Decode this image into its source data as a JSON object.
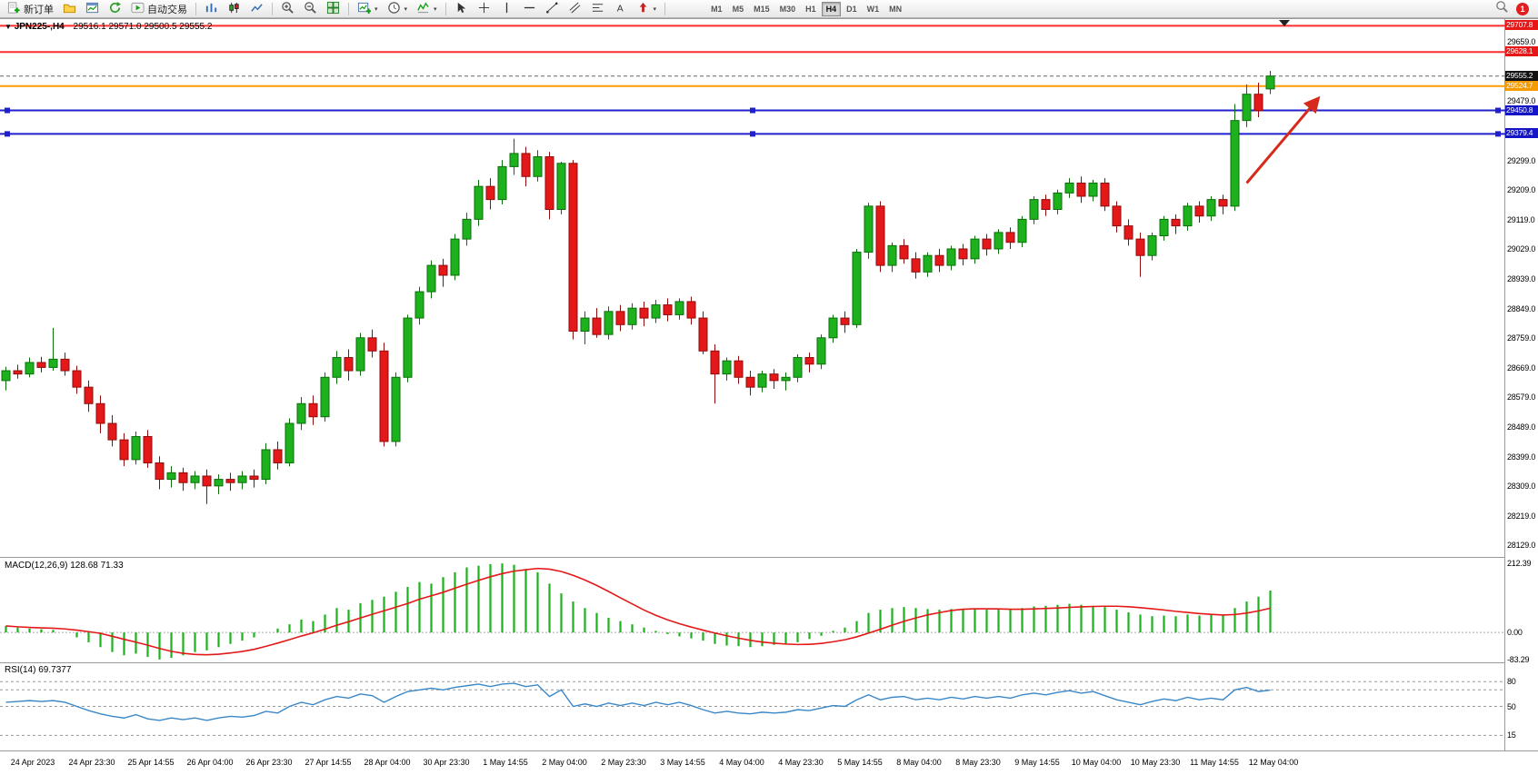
{
  "toolbar": {
    "new_order": "新订单",
    "autotrading": "自动交易",
    "timeframes": [
      "M1",
      "M5",
      "M15",
      "M30",
      "H1",
      "H4",
      "D1",
      "W1",
      "MN"
    ],
    "active_timeframe": "H4",
    "notification_count": "1"
  },
  "chart_header": {
    "symbol_period": "JPN225-,H4",
    "ohlc": "29516.1 29571.0 29500.5 29555.2"
  },
  "macd_header": "MACD(12,26,9) 128.68 71.33",
  "rsi_header": "RSI(14) 69.7377",
  "price_axis": {
    "plain": [
      "29659.0",
      "29479.0",
      "29299.0",
      "29209.0",
      "29119.0",
      "29029.0",
      "28939.0",
      "28849.0",
      "28759.0",
      "28669.0",
      "28579.0",
      "28489.0",
      "28399.0",
      "28309.0",
      "28219.0",
      "28129.0"
    ],
    "tagged": [
      {
        "text": "29707.8",
        "bg": "#e81717"
      },
      {
        "text": "29628.1",
        "bg": "#e81717"
      },
      {
        "text": "29555.2",
        "bg": "#111111"
      },
      {
        "text": "29524.7",
        "bg": "#f59a00"
      },
      {
        "text": "29450.8",
        "bg": "#1515c8"
      },
      {
        "text": "29379.4",
        "bg": "#1515c8"
      }
    ]
  },
  "macd_axis": [
    "212.39",
    "0.00",
    "-83.29"
  ],
  "rsi_axis": [
    "80",
    "50",
    "15"
  ],
  "time_axis": [
    "24 Apr 2023",
    "24 Apr 23:30",
    "25 Apr 14:55",
    "26 Apr 04:00",
    "26 Apr 23:30",
    "27 Apr 14:55",
    "28 Apr 04:00",
    "30 Apr 23:30",
    "1 May 14:55",
    "2 May 04:00",
    "2 May 23:30",
    "3 May 14:55",
    "4 May 04:00",
    "4 May 23:30",
    "5 May 14:55",
    "8 May 04:00",
    "8 May 23:30",
    "9 May 14:55",
    "10 May 04:00",
    "10 May 23:30",
    "11 May 14:55",
    "12 May 04:00"
  ],
  "chart_data": [
    {
      "type": "candlestick",
      "title": "JPN225- H4 candlestick chart",
      "ylim": [
        28097,
        29731
      ],
      "colors": {
        "up": "#1db21d",
        "up_border": "#0b6e0b",
        "down": "#e41818",
        "down_border": "#8f0d0d"
      },
      "current_price": 29555.2,
      "levels": [
        {
          "name": "resistance-line-29707",
          "price": 29707.8,
          "color": "#ff2e2e",
          "width": 2
        },
        {
          "name": "resistance-line-29628",
          "price": 29628.1,
          "color": "#ff2e2e",
          "width": 2
        },
        {
          "name": "resistance-line-29524",
          "price": 29524.7,
          "color": "#ff9d00",
          "width": 2
        },
        {
          "name": "support-line-29450",
          "price": 29450.8,
          "color": "#2020cf",
          "width": 2,
          "selected": true
        },
        {
          "name": "support-line-29379",
          "price": 29379.4,
          "color": "#2020cf",
          "width": 2,
          "selected": true
        }
      ],
      "annotation_arrow": {
        "from_bar": 105,
        "from_price": 29230,
        "to_bar": 111,
        "to_price": 29485,
        "color": "#d62b1a"
      },
      "candles": [
        [
          28630,
          28672,
          28600,
          28660
        ],
        [
          28660,
          28678,
          28636,
          28650
        ],
        [
          28650,
          28700,
          28640,
          28685
        ],
        [
          28685,
          28702,
          28655,
          28670
        ],
        [
          28670,
          28790,
          28660,
          28695
        ],
        [
          28695,
          28715,
          28645,
          28660
        ],
        [
          28660,
          28675,
          28590,
          28610
        ],
        [
          28610,
          28630,
          28535,
          28560
        ],
        [
          28560,
          28585,
          28470,
          28500
        ],
        [
          28500,
          28525,
          28430,
          28450
        ],
        [
          28450,
          28470,
          28370,
          28390
        ],
        [
          28390,
          28475,
          28375,
          28460
        ],
        [
          28460,
          28480,
          28365,
          28380
        ],
        [
          28380,
          28400,
          28300,
          28330
        ],
        [
          28330,
          28370,
          28305,
          28350
        ],
        [
          28350,
          28365,
          28295,
          28320
        ],
        [
          28320,
          28355,
          28300,
          28340
        ],
        [
          28340,
          28360,
          28255,
          28310
        ],
        [
          28310,
          28345,
          28285,
          28330
        ],
        [
          28330,
          28350,
          28295,
          28320
        ],
        [
          28320,
          28355,
          28300,
          28340
        ],
        [
          28340,
          28360,
          28305,
          28330
        ],
        [
          28330,
          28440,
          28315,
          28420
        ],
        [
          28420,
          28445,
          28360,
          28380
        ],
        [
          28380,
          28515,
          28370,
          28500
        ],
        [
          28500,
          28580,
          28480,
          28560
        ],
        [
          28560,
          28585,
          28495,
          28520
        ],
        [
          28520,
          28655,
          28505,
          28640
        ],
        [
          28640,
          28720,
          28620,
          28700
        ],
        [
          28700,
          28725,
          28630,
          28660
        ],
        [
          28660,
          28775,
          28645,
          28760
        ],
        [
          28760,
          28785,
          28700,
          28720
        ],
        [
          28720,
          28745,
          28430,
          28445
        ],
        [
          28445,
          28655,
          28430,
          28640
        ],
        [
          28640,
          28830,
          28625,
          28820
        ],
        [
          28820,
          28915,
          28800,
          28900
        ],
        [
          28900,
          28995,
          28880,
          28980
        ],
        [
          28980,
          29000,
          28915,
          28950
        ],
        [
          28950,
          29075,
          28935,
          29060
        ],
        [
          29060,
          29140,
          29040,
          29120
        ],
        [
          29120,
          29240,
          29100,
          29220
        ],
        [
          29220,
          29245,
          29150,
          29180
        ],
        [
          29180,
          29300,
          29165,
          29280
        ],
        [
          29280,
          29365,
          29255,
          29320
        ],
        [
          29320,
          29340,
          29220,
          29250
        ],
        [
          29250,
          29330,
          29235,
          29310
        ],
        [
          29310,
          29325,
          29120,
          29150
        ],
        [
          29150,
          29295,
          29135,
          29290
        ],
        [
          29290,
          29300,
          28755,
          28780
        ],
        [
          28780,
          28840,
          28740,
          28820
        ],
        [
          28820,
          28850,
          28760,
          28770
        ],
        [
          28770,
          28855,
          28755,
          28840
        ],
        [
          28840,
          28860,
          28780,
          28800
        ],
        [
          28800,
          28865,
          28785,
          28850
        ],
        [
          28850,
          28870,
          28795,
          28820
        ],
        [
          28820,
          28875,
          28805,
          28860
        ],
        [
          28860,
          28880,
          28810,
          28830
        ],
        [
          28830,
          28880,
          28815,
          28870
        ],
        [
          28870,
          28885,
          28800,
          28820
        ],
        [
          28820,
          28840,
          28710,
          28720
        ],
        [
          28720,
          28740,
          28560,
          28650
        ],
        [
          28650,
          28700,
          28630,
          28690
        ],
        [
          28690,
          28705,
          28620,
          28640
        ],
        [
          28640,
          28660,
          28585,
          28610
        ],
        [
          28610,
          28660,
          28595,
          28650
        ],
        [
          28650,
          28665,
          28605,
          28630
        ],
        [
          28630,
          28655,
          28600,
          28640
        ],
        [
          28640,
          28710,
          28625,
          28700
        ],
        [
          28700,
          28715,
          28655,
          28680
        ],
        [
          28680,
          28770,
          28665,
          28760
        ],
        [
          28760,
          28830,
          28745,
          28820
        ],
        [
          28820,
          28840,
          28775,
          28800
        ],
        [
          28800,
          29030,
          28790,
          29020
        ],
        [
          29020,
          29170,
          29000,
          29160
        ],
        [
          29160,
          29175,
          28960,
          28980
        ],
        [
          28980,
          29050,
          28960,
          29040
        ],
        [
          29040,
          29060,
          28985,
          29000
        ],
        [
          29000,
          29020,
          28940,
          28960
        ],
        [
          28960,
          29020,
          28945,
          29010
        ],
        [
          29010,
          29030,
          28960,
          28980
        ],
        [
          28980,
          29040,
          28965,
          29030
        ],
        [
          29030,
          29045,
          28980,
          29000
        ],
        [
          29000,
          29070,
          28985,
          29060
        ],
        [
          29060,
          29075,
          29010,
          29030
        ],
        [
          29030,
          29090,
          29015,
          29080
        ],
        [
          29080,
          29095,
          29030,
          29050
        ],
        [
          29050,
          29130,
          29035,
          29120
        ],
        [
          29120,
          29190,
          29105,
          29180
        ],
        [
          29180,
          29195,
          29130,
          29150
        ],
        [
          29150,
          29210,
          29135,
          29200
        ],
        [
          29200,
          29245,
          29185,
          29230
        ],
        [
          29230,
          29250,
          29170,
          29190
        ],
        [
          29190,
          29240,
          29175,
          29230
        ],
        [
          29230,
          29245,
          29145,
          29160
        ],
        [
          29160,
          29175,
          29080,
          29100
        ],
        [
          29100,
          29120,
          29040,
          29060
        ],
        [
          29060,
          29080,
          28945,
          29010
        ],
        [
          29010,
          29080,
          28995,
          29070
        ],
        [
          29070,
          29130,
          29055,
          29120
        ],
        [
          29120,
          29135,
          29075,
          29100
        ],
        [
          29100,
          29170,
          29085,
          29160
        ],
        [
          29160,
          29175,
          29110,
          29130
        ],
        [
          29130,
          29190,
          29115,
          29180
        ],
        [
          29180,
          29195,
          29135,
          29160
        ],
        [
          29160,
          29470,
          29145,
          29420
        ],
        [
          29420,
          29530,
          29400,
          29500
        ],
        [
          29500,
          29535,
          29430,
          29450
        ],
        [
          29516.1,
          29571.0,
          29500.5,
          29555.2
        ]
      ]
    },
    {
      "type": "bar",
      "title": "MACD(12,26,9)",
      "ylim": [
        -83.29,
        212.39
      ],
      "color": "#1db21d",
      "signal_color": "#e41818",
      "values": [
        20,
        15,
        12,
        10,
        8,
        0,
        -15,
        -30,
        -45,
        -60,
        -70,
        -65,
        -75,
        -83,
        -78,
        -70,
        -60,
        -55,
        -45,
        -35,
        -25,
        -15,
        0,
        12,
        25,
        40,
        35,
        55,
        75,
        70,
        90,
        100,
        110,
        125,
        140,
        155,
        150,
        170,
        185,
        200,
        205,
        210,
        212,
        208,
        195,
        185,
        150,
        120,
        95,
        75,
        60,
        45,
        35,
        25,
        15,
        5,
        -5,
        -12,
        -18,
        -25,
        -35,
        -40,
        -42,
        -45,
        -42,
        -38,
        -35,
        -30,
        -20,
        -10,
        5,
        15,
        35,
        60,
        70,
        75,
        78,
        75,
        72,
        70,
        72,
        70,
        72,
        70,
        72,
        70,
        75,
        80,
        82,
        85,
        88,
        85,
        82,
        78,
        70,
        62,
        55,
        50,
        52,
        50,
        55,
        52,
        55,
        52,
        75,
        95,
        110,
        128.68
      ]
    },
    {
      "type": "line",
      "title": "RSI(14)",
      "ylim": [
        0,
        100
      ],
      "color": "#3a87c8",
      "levels": [
        80,
        70,
        50,
        15
      ],
      "values": [
        55,
        56,
        57,
        56,
        57,
        55,
        50,
        45,
        41,
        38,
        36,
        40,
        35,
        33,
        36,
        34,
        36,
        33,
        36,
        38,
        37,
        39,
        44,
        42,
        50,
        55,
        52,
        58,
        62,
        60,
        65,
        63,
        55,
        62,
        68,
        70,
        72,
        70,
        73,
        75,
        77,
        74,
        77,
        78,
        74,
        76,
        62,
        70,
        50,
        53,
        50,
        54,
        51,
        54,
        51,
        55,
        52,
        55,
        51,
        46,
        42,
        44,
        42,
        41,
        43,
        42,
        43,
        46,
        45,
        48,
        51,
        50,
        58,
        64,
        58,
        61,
        62,
        58,
        60,
        58,
        61,
        59,
        62,
        60,
        62,
        60,
        64,
        66,
        64,
        67,
        69,
        66,
        68,
        63,
        58,
        55,
        52,
        56,
        59,
        57,
        61,
        58,
        60,
        58,
        70,
        73,
        68,
        69.74
      ]
    }
  ]
}
